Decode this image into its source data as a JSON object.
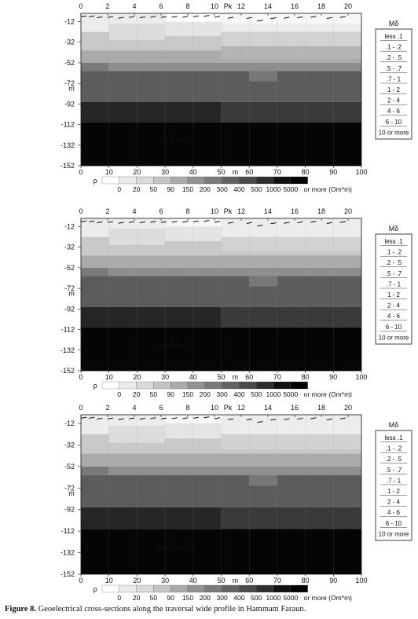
{
  "figure": {
    "caption_label": "Figure 8.",
    "caption_text": " Geoelectrical cross-sections along the traversal wide profile in Hammam Faraun."
  },
  "axes": {
    "pk_label": "Pk",
    "pk_ticks": [
      "0",
      "2",
      "4",
      "6",
      "8",
      "10",
      "12",
      "14",
      "16",
      "18",
      "20"
    ],
    "depth_ticks": [
      "-12",
      "-32",
      "-52",
      "-72",
      "-92",
      "-112",
      "-132",
      "-152"
    ],
    "depth_unit": "m",
    "distance_ticks": [
      "0",
      "10",
      "20",
      "30",
      "40",
      "50",
      "60",
      "70",
      "80",
      "90",
      "100"
    ],
    "distance_unit": "m"
  },
  "colorbar": {
    "symbol": "ρ",
    "labels": [
      "0",
      "20",
      "50",
      "90",
      "150",
      "200",
      "300",
      "400",
      "500",
      "1000",
      "5000"
    ],
    "suffix": "or more (Om*m)",
    "colors": [
      "#ffffff",
      "#ebebeb",
      "#dadada",
      "#c4c4c4",
      "#aaaaaa",
      "#929292",
      "#7a7a7a",
      "#626262",
      "#4a4a4a",
      "#2e2e2e",
      "#101010",
      "#000000"
    ]
  },
  "legend": {
    "title": "Mδ",
    "items": [
      "less .1",
      ".1 - .2",
      ".2 - .5",
      ".5 - .7",
      ".7 - 1",
      "1 - 2",
      "2 - 4",
      "4 - 6",
      "6 - 10",
      "10 or more"
    ]
  },
  "sections": [
    {
      "label": "(a)",
      "frequency": "5.08 kHz",
      "layers": [
        {
          "depth_top": -4,
          "depth_bottom": -22,
          "distance_from": 0,
          "distance_to": 30,
          "color": "#ececec"
        },
        {
          "depth_top": -4,
          "depth_bottom": -22,
          "distance_from": 30,
          "distance_to": 100,
          "color": "#ececec"
        },
        {
          "depth_top": -4,
          "depth_bottom": -12,
          "distance_from": 30,
          "distance_to": 50,
          "color": "#ffffff"
        },
        {
          "depth_top": -4,
          "depth_bottom": -14,
          "distance_from": 50,
          "distance_to": 100,
          "color": "#f6f6f6"
        },
        {
          "depth_top": -22,
          "depth_bottom": -40,
          "distance_from": 0,
          "distance_to": 100,
          "color": "#c9c9c9"
        },
        {
          "depth_top": -14,
          "depth_bottom": -30,
          "distance_from": 10,
          "distance_to": 30,
          "color": "#dcdcdc"
        },
        {
          "depth_top": -12,
          "depth_bottom": -26,
          "distance_from": 30,
          "distance_to": 50,
          "color": "#e4e4e4"
        },
        {
          "depth_top": -22,
          "depth_bottom": -36,
          "distance_from": 50,
          "distance_to": 100,
          "color": "#d2d2d2"
        },
        {
          "depth_top": -40,
          "depth_bottom": -52,
          "distance_from": 0,
          "distance_to": 100,
          "color": "#aaaaaa"
        },
        {
          "depth_top": -36,
          "depth_bottom": -48,
          "distance_from": 50,
          "distance_to": 100,
          "color": "#b4b4b4"
        },
        {
          "depth_top": -52,
          "depth_bottom": -60,
          "distance_from": 0,
          "distance_to": 10,
          "color": "#7a7a7a"
        },
        {
          "depth_top": -52,
          "depth_bottom": -60,
          "distance_from": 10,
          "distance_to": 100,
          "color": "#8e8e8e"
        },
        {
          "depth_top": -60,
          "depth_bottom": -90,
          "distance_from": 0,
          "distance_to": 100,
          "color": "#5c5c5c"
        },
        {
          "depth_top": -60,
          "depth_bottom": -70,
          "distance_from": 60,
          "distance_to": 70,
          "color": "#777777"
        },
        {
          "depth_top": -90,
          "depth_bottom": -110,
          "distance_from": 0,
          "distance_to": 50,
          "color": "#262626"
        },
        {
          "depth_top": -90,
          "depth_bottom": -110,
          "distance_from": 50,
          "distance_to": 100,
          "color": "#3a3a3a"
        },
        {
          "depth_top": -110,
          "depth_bottom": -152,
          "distance_from": 0,
          "distance_to": 100,
          "color": "#050505"
        }
      ]
    },
    {
      "label": "(b)",
      "frequency": "2.54 kHz",
      "layers": [
        {
          "depth_top": -4,
          "depth_bottom": -22,
          "distance_from": 0,
          "distance_to": 100,
          "color": "#ececec"
        },
        {
          "depth_top": -4,
          "depth_bottom": -12,
          "distance_from": 30,
          "distance_to": 50,
          "color": "#f8f8f8"
        },
        {
          "depth_top": -22,
          "depth_bottom": -40,
          "distance_from": 0,
          "distance_to": 100,
          "color": "#c9c9c9"
        },
        {
          "depth_top": -14,
          "depth_bottom": -30,
          "distance_from": 10,
          "distance_to": 30,
          "color": "#dcdcdc"
        },
        {
          "depth_top": -12,
          "depth_bottom": -26,
          "distance_from": 30,
          "distance_to": 50,
          "color": "#e4e4e4"
        },
        {
          "depth_top": -22,
          "depth_bottom": -36,
          "distance_from": 50,
          "distance_to": 100,
          "color": "#d2d2d2"
        },
        {
          "depth_top": -40,
          "depth_bottom": -52,
          "distance_from": 0,
          "distance_to": 100,
          "color": "#aaaaaa"
        },
        {
          "depth_top": -52,
          "depth_bottom": -60,
          "distance_from": 0,
          "distance_to": 10,
          "color": "#7a7a7a"
        },
        {
          "depth_top": -52,
          "depth_bottom": -60,
          "distance_from": 10,
          "distance_to": 100,
          "color": "#8e8e8e"
        },
        {
          "depth_top": -60,
          "depth_bottom": -90,
          "distance_from": 0,
          "distance_to": 100,
          "color": "#5c5c5c"
        },
        {
          "depth_top": -60,
          "depth_bottom": -70,
          "distance_from": 60,
          "distance_to": 70,
          "color": "#777777"
        },
        {
          "depth_top": -90,
          "depth_bottom": -110,
          "distance_from": 0,
          "distance_to": 50,
          "color": "#262626"
        },
        {
          "depth_top": -90,
          "depth_bottom": -110,
          "distance_from": 50,
          "distance_to": 100,
          "color": "#3a3a3a"
        },
        {
          "depth_top": -110,
          "depth_bottom": -152,
          "distance_from": 0,
          "distance_to": 100,
          "color": "#050505"
        }
      ]
    },
    {
      "label": "(c)",
      "frequency": "0.635 kHz",
      "layers": [
        {
          "depth_top": -4,
          "depth_bottom": -22,
          "distance_from": 0,
          "distance_to": 100,
          "color": "#ececec"
        },
        {
          "depth_top": -4,
          "depth_bottom": -12,
          "distance_from": 30,
          "distance_to": 50,
          "color": "#f8f8f8"
        },
        {
          "depth_top": -22,
          "depth_bottom": -40,
          "distance_from": 0,
          "distance_to": 100,
          "color": "#c9c9c9"
        },
        {
          "depth_top": -14,
          "depth_bottom": -30,
          "distance_from": 10,
          "distance_to": 30,
          "color": "#dcdcdc"
        },
        {
          "depth_top": -12,
          "depth_bottom": -26,
          "distance_from": 30,
          "distance_to": 50,
          "color": "#e4e4e4"
        },
        {
          "depth_top": -22,
          "depth_bottom": -36,
          "distance_from": 50,
          "distance_to": 100,
          "color": "#d2d2d2"
        },
        {
          "depth_top": -40,
          "depth_bottom": -52,
          "distance_from": 0,
          "distance_to": 100,
          "color": "#aaaaaa"
        },
        {
          "depth_top": -52,
          "depth_bottom": -60,
          "distance_from": 0,
          "distance_to": 10,
          "color": "#7a7a7a"
        },
        {
          "depth_top": -52,
          "depth_bottom": -60,
          "distance_from": 10,
          "distance_to": 100,
          "color": "#8e8e8e"
        },
        {
          "depth_top": -60,
          "depth_bottom": -90,
          "distance_from": 0,
          "distance_to": 100,
          "color": "#5c5c5c"
        },
        {
          "depth_top": -60,
          "depth_bottom": -70,
          "distance_from": 60,
          "distance_to": 70,
          "color": "#777777"
        },
        {
          "depth_top": -90,
          "depth_bottom": -110,
          "distance_from": 0,
          "distance_to": 50,
          "color": "#262626"
        },
        {
          "depth_top": -90,
          "depth_bottom": -110,
          "distance_from": 50,
          "distance_to": 100,
          "color": "#3a3a3a"
        },
        {
          "depth_top": -110,
          "depth_bottom": -152,
          "distance_from": 0,
          "distance_to": 100,
          "color": "#050505"
        }
      ]
    }
  ]
}
